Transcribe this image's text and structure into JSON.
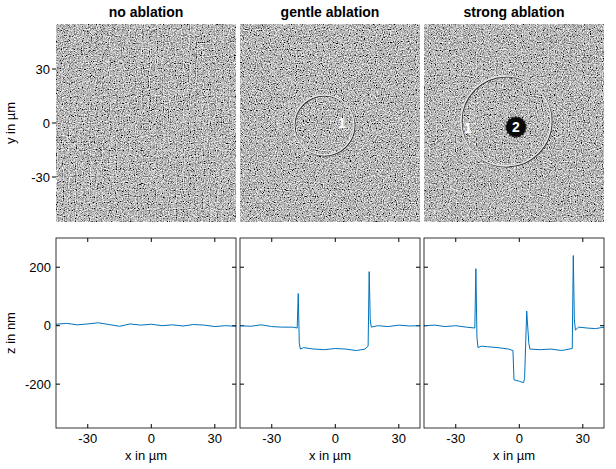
{
  "chart_data": [
    {
      "type": "image",
      "title": "no ablation",
      "ylabel": "y in µm",
      "ylim": [
        -55,
        55
      ],
      "yticks": [
        -30,
        0,
        30
      ]
    },
    {
      "type": "image",
      "title": "gentle ablation",
      "annotations": [
        "1"
      ],
      "tick_labels": false
    },
    {
      "type": "image",
      "title": "strong ablation",
      "annotations": [
        "1",
        "2"
      ],
      "tick_labels": false
    },
    {
      "type": "line",
      "xlabel": "x in µm",
      "ylabel": "z in nm",
      "xlim": [
        -45,
        40
      ],
      "ylim": [
        -350,
        300
      ],
      "xticks": [
        -30,
        0,
        30
      ],
      "yticks": [
        -200,
        0,
        200
      ],
      "color": "#0072bd",
      "x": [
        -45,
        -40,
        -35,
        -30,
        -25,
        -20,
        -15,
        -10,
        -5,
        0,
        5,
        10,
        15,
        20,
        25,
        30,
        35,
        40
      ],
      "values": [
        5,
        8,
        3,
        6,
        10,
        4,
        -2,
        6,
        2,
        5,
        0,
        3,
        -1,
        4,
        2,
        -3,
        0,
        -2
      ]
    },
    {
      "type": "line",
      "xlabel": "x in µm",
      "xlim": [
        -45,
        40
      ],
      "ylim": [
        -350,
        300
      ],
      "xticks": [
        -30,
        0,
        30
      ],
      "yticks": [
        -200,
        0,
        200
      ],
      "color": "#0072bd",
      "tick_labels": "x",
      "x": [
        -45,
        -40,
        -35,
        -30,
        -25,
        -20,
        -18,
        -17.5,
        -17,
        -16.5,
        -15,
        -10,
        -5,
        0,
        5,
        10,
        14,
        15.5,
        16,
        16.5,
        17,
        20,
        25,
        30,
        35,
        40
      ],
      "values": [
        0,
        -2,
        3,
        -3,
        -5,
        -5,
        -8,
        110,
        -60,
        -80,
        -75,
        -80,
        -82,
        -78,
        -80,
        -85,
        -80,
        -70,
        185,
        20,
        -5,
        0,
        -3,
        2,
        -1,
        0
      ]
    },
    {
      "type": "line",
      "xlabel": "x in µm",
      "xlim": [
        -45,
        40
      ],
      "ylim": [
        -350,
        300
      ],
      "xticks": [
        -30,
        0,
        30
      ],
      "yticks": [
        -200,
        0,
        200
      ],
      "color": "#0072bd",
      "tick_labels": "x",
      "x": [
        -45,
        -40,
        -35,
        -30,
        -25,
        -21,
        -20.5,
        -20,
        -19.5,
        -18,
        -15,
        -10,
        -5,
        -3,
        -2.5,
        0,
        2,
        2.5,
        3.5,
        4.5,
        5,
        10,
        15,
        20,
        25,
        25.5,
        26,
        26.5,
        28,
        32,
        36,
        40
      ],
      "values": [
        0,
        2,
        -3,
        0,
        -5,
        -8,
        195,
        -40,
        -75,
        -70,
        -72,
        -75,
        -80,
        -85,
        -185,
        -190,
        -195,
        -180,
        50,
        -60,
        -80,
        -82,
        -80,
        -85,
        -78,
        240,
        20,
        -15,
        -5,
        -8,
        -10,
        -5
      ]
    }
  ]
}
